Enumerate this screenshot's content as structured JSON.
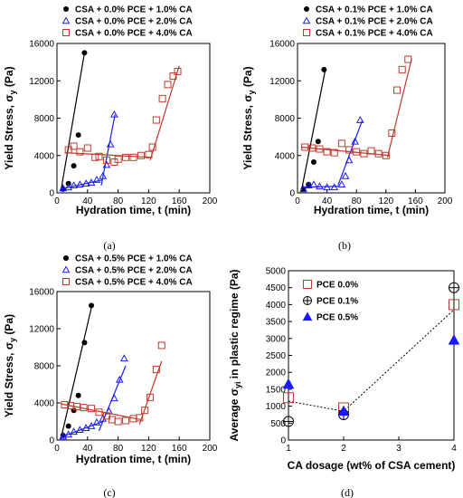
{
  "figure": {
    "captions": [
      "(a)",
      "(b)",
      "(c)",
      "(d)"
    ]
  },
  "colors": {
    "black": "#000000",
    "blue": "#1a1aff",
    "red": "#c0392b",
    "marker_edge": "#444444"
  },
  "chart_data": [
    {
      "type": "scatter",
      "panel": "a",
      "xlabel": "Hydration time, t (min)",
      "ylabel": "Yield Stress, σ_y (Pa)",
      "ylabel_main": "Yield Stress, σ",
      "ylabel_sub": "y",
      "ylabel_tail": " (Pa)",
      "xlim": [
        0,
        200
      ],
      "ylim": [
        0,
        16000
      ],
      "xticks": [
        "0",
        "40",
        "80",
        "120",
        "160",
        "200"
      ],
      "yticks": [
        "0",
        "4000",
        "8000",
        "12000",
        "16000"
      ],
      "legend_position": "top-left",
      "series": [
        {
          "name": "CSA + 0.0% PCE + 1.0% CA",
          "marker": "filled-circle",
          "color": "black",
          "points": [
            [
              8,
              400
            ],
            [
              15,
              1000
            ],
            [
              22,
              2900
            ],
            [
              28,
              6200
            ],
            [
              36,
              15000
            ]
          ],
          "fit": [
            [
              [
                5,
                150
              ],
              [
                36,
                15000
              ]
            ]
          ]
        },
        {
          "name": "CSA + 0.0% PCE + 2.0% CA",
          "marker": "open-triangle",
          "color": "blue",
          "points": [
            [
              8,
              500
            ],
            [
              15,
              600
            ],
            [
              22,
              800
            ],
            [
              30,
              900
            ],
            [
              38,
              1000
            ],
            [
              45,
              1100
            ],
            [
              52,
              1400
            ],
            [
              60,
              1800
            ],
            [
              65,
              3000
            ],
            [
              70,
              5200
            ],
            [
              75,
              8400
            ]
          ],
          "fit": [
            [
              [
                5,
                400
              ],
              [
                60,
                1400
              ]
            ],
            [
              [
                58,
                800
              ],
              [
                76,
                8400
              ]
            ]
          ]
        },
        {
          "name": "CSA + 0.0% PCE + 4.0% CA",
          "marker": "open-square",
          "color": "red",
          "points": [
            [
              15,
              4600
            ],
            [
              22,
              5000
            ],
            [
              30,
              4400
            ],
            [
              40,
              4800
            ],
            [
              50,
              3800
            ],
            [
              55,
              3900
            ],
            [
              65,
              3500
            ],
            [
              75,
              3300
            ],
            [
              80,
              3600
            ],
            [
              90,
              3800
            ],
            [
              100,
              3800
            ],
            [
              110,
              4000
            ],
            [
              120,
              4100
            ],
            [
              125,
              4900
            ],
            [
              130,
              7800
            ],
            [
              138,
              10100
            ],
            [
              145,
              11600
            ],
            [
              152,
              12500
            ],
            [
              158,
              13000
            ]
          ],
          "fit": [
            [
              [
                10,
                4300
              ],
              [
                125,
                3800
              ]
            ],
            [
              [
                122,
                3500
              ],
              [
                160,
                13600
              ]
            ]
          ]
        }
      ]
    },
    {
      "type": "scatter",
      "panel": "b",
      "xlabel": "Hydration time, t (min)",
      "ylabel": "Yield Stress, σ_y (Pa)",
      "ylabel_main": "Yield Stress, σ",
      "ylabel_sub": "y",
      "ylabel_tail": " (Pa)",
      "xlim": [
        0,
        200
      ],
      "ylim": [
        0,
        16000
      ],
      "xticks": [
        "0",
        "40",
        "80",
        "120",
        "160",
        "200"
      ],
      "yticks": [
        "0",
        "4000",
        "8000",
        "12000",
        "16000"
      ],
      "legend_position": "top-left",
      "series": [
        {
          "name": "CSA + 0.1% PCE + 1.0% CA",
          "marker": "filled-circle",
          "color": "black",
          "points": [
            [
              8,
              400
            ],
            [
              15,
              900
            ],
            [
              22,
              3300
            ],
            [
              28,
              5500
            ],
            [
              36,
              13200
            ]
          ],
          "fit": [
            [
              [
                5,
                100
              ],
              [
                38,
                13300
              ]
            ]
          ]
        },
        {
          "name": "CSA + 0.1% PCE + 2.0% CA",
          "marker": "open-triangle",
          "color": "blue",
          "points": [
            [
              8,
              400
            ],
            [
              15,
              800
            ],
            [
              22,
              900
            ],
            [
              30,
              700
            ],
            [
              40,
              600
            ],
            [
              50,
              600
            ],
            [
              60,
              900
            ],
            [
              65,
              1800
            ],
            [
              70,
              3500
            ],
            [
              78,
              5500
            ],
            [
              85,
              7800
            ]
          ],
          "fit": [
            [
              [
                5,
                600
              ],
              [
                55,
                700
              ]
            ],
            [
              [
                55,
                800
              ],
              [
                88,
                7800
              ]
            ]
          ]
        },
        {
          "name": "CSA + 0.1% PCE + 4.0% CA",
          "marker": "open-square",
          "color": "red",
          "points": [
            [
              10,
              4900
            ],
            [
              20,
              4800
            ],
            [
              30,
              4700
            ],
            [
              40,
              4400
            ],
            [
              50,
              4300
            ],
            [
              60,
              5300
            ],
            [
              70,
              4600
            ],
            [
              80,
              4400
            ],
            [
              90,
              4200
            ],
            [
              100,
              4500
            ],
            [
              110,
              4200
            ],
            [
              120,
              4000
            ],
            [
              128,
              6400
            ],
            [
              135,
              11000
            ],
            [
              142,
              13200
            ],
            [
              150,
              14300
            ]
          ],
          "fit": [
            [
              [
                5,
                4900
              ],
              [
                125,
                4000
              ]
            ],
            [
              [
                122,
                3800
              ],
              [
                155,
                14400
              ]
            ]
          ]
        }
      ]
    },
    {
      "type": "scatter",
      "panel": "c",
      "xlabel": "Hydration time, t (min)",
      "ylabel": "Yield Stress, σ_y (Pa)",
      "ylabel_main": "Yield Stress, σ",
      "ylabel_sub": "y",
      "ylabel_tail": " (Pa)",
      "xlim": [
        0,
        200
      ],
      "ylim": [
        0,
        16000
      ],
      "xticks": [
        "0",
        "40",
        "80",
        "120",
        "160",
        "200"
      ],
      "yticks": [
        "0",
        "4000",
        "8000",
        "12000",
        "16000"
      ],
      "legend_position": "top-left",
      "series": [
        {
          "name": "CSA + 0.5% PCE + 1.0% CA",
          "marker": "filled-circle",
          "color": "black",
          "points": [
            [
              8,
              500
            ],
            [
              15,
              1500
            ],
            [
              22,
              3200
            ],
            [
              28,
              4800
            ],
            [
              36,
              10500
            ],
            [
              45,
              14500
            ]
          ],
          "fit": [
            [
              [
                5,
                100
              ],
              [
                46,
                14600
              ]
            ]
          ]
        },
        {
          "name": "CSA + 0.5% PCE + 2.0% CA",
          "marker": "open-triangle",
          "color": "blue",
          "points": [
            [
              8,
              400
            ],
            [
              15,
              600
            ],
            [
              22,
              900
            ],
            [
              30,
              1100
            ],
            [
              38,
              1300
            ],
            [
              45,
              1500
            ],
            [
              52,
              1900
            ],
            [
              60,
              2300
            ],
            [
              68,
              3100
            ],
            [
              75,
              4500
            ],
            [
              82,
              6500
            ],
            [
              88,
              8800
            ]
          ],
          "fit": [
            [
              [
                5,
                300
              ],
              [
                60,
                2000
              ]
            ],
            [
              [
                55,
                1000
              ],
              [
                90,
                8000
              ]
            ]
          ]
        },
        {
          "name": "CSA + 0.5% PCE + 4.0% CA",
          "marker": "open-square",
          "color": "red",
          "points": [
            [
              10,
              3800
            ],
            [
              18,
              3700
            ],
            [
              26,
              3600
            ],
            [
              35,
              3500
            ],
            [
              45,
              3400
            ],
            [
              55,
              3000
            ],
            [
              65,
              2600
            ],
            [
              72,
              2200
            ],
            [
              80,
              2000
            ],
            [
              90,
              2100
            ],
            [
              100,
              2300
            ],
            [
              108,
              2400
            ],
            [
              115,
              3200
            ],
            [
              122,
              4600
            ],
            [
              130,
              7600
            ],
            [
              137,
              10200
            ]
          ],
          "fit": [
            [
              [
                5,
                3900
              ],
              [
                110,
                2200
              ]
            ],
            [
              [
                108,
                1700
              ],
              [
                137,
                8500
              ]
            ]
          ]
        }
      ]
    },
    {
      "type": "scatter",
      "panel": "d",
      "xlabel": "CA dosage (wt% of CSA cement)",
      "ylabel": "Average σ_yi in plastic regime (Pa)",
      "ylabel_main": "Average σ",
      "ylabel_sub": "yi",
      "ylabel_tail": " in plastic regime (Pa)",
      "xlim": [
        1,
        4
      ],
      "ylim": [
        0,
        5000
      ],
      "xticks": [
        "1",
        "2",
        "3",
        "4"
      ],
      "yticks": [
        "0",
        "500",
        "1000",
        "1500",
        "2000",
        "2500",
        "3000",
        "3500",
        "4000",
        "4500",
        "5000"
      ],
      "legend_position": "top-left",
      "series": [
        {
          "name": "PCE 0.0%",
          "marker": "open-square",
          "color": "red",
          "x": [
            1,
            2,
            4
          ],
          "y": [
            1250,
            950,
            4000
          ]
        },
        {
          "name": "PCE 0.1%",
          "marker": "circle-plus",
          "color": "black",
          "x": [
            1,
            2,
            4
          ],
          "y": [
            550,
            750,
            4500
          ]
        },
        {
          "name": "PCE 0.5%",
          "marker": "filled-triangle",
          "color": "blue",
          "x": [
            1,
            2,
            4
          ],
          "y": [
            1650,
            850,
            2950
          ]
        }
      ],
      "trend_line": {
        "style": "dotted",
        "x": [
          1,
          2,
          4
        ],
        "y": [
          1150,
          850,
          3850
        ]
      }
    }
  ]
}
